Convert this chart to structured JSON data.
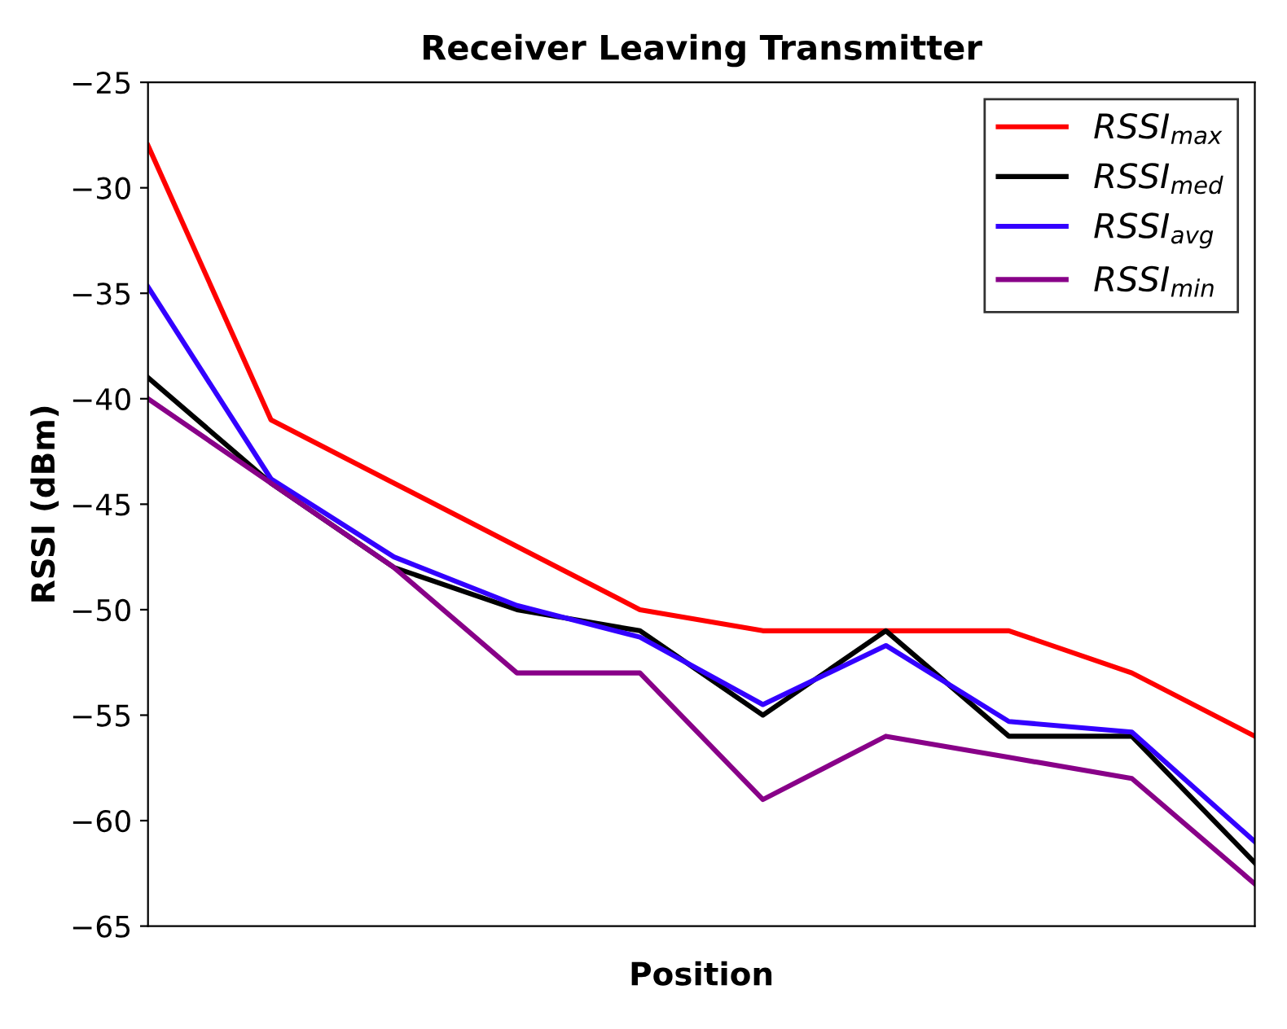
{
  "chart_data": {
    "type": "line",
    "title": "Receiver Leaving Transmitter",
    "xlabel": "Position",
    "ylabel": "RSSI (dBm)",
    "categories": [
      null,
      null,
      null,
      null,
      null,
      null,
      null,
      null,
      null,
      null
    ],
    "series": [
      {
        "name": "RSSI$_{max}$",
        "color": "#ff0000",
        "values": [
          -28,
          -41,
          -44,
          -47,
          -50,
          -51,
          -51,
          -51,
          -53,
          -56
        ]
      },
      {
        "name": "RSSI$_{med}$",
        "color": "#000000",
        "values": [
          -39,
          -44,
          -48,
          -50,
          -51,
          -55,
          -51,
          -56,
          -56,
          -62
        ]
      },
      {
        "name": "RSSI$_{avg}$",
        "color": "#3300ff",
        "values": [
          -34.7,
          -43.8,
          -47.5,
          -49.8,
          -51.3,
          -54.5,
          -51.7,
          -55.3,
          -55.8,
          -61
        ]
      },
      {
        "name": "RSSI$_{min}$",
        "color": "#880088",
        "values": [
          -40,
          -44,
          -48,
          -53,
          -53,
          -59,
          -56,
          -57,
          -58,
          -63
        ]
      }
    ],
    "ylim": [
      -65,
      -25
    ],
    "yticks": [
      -65,
      -60,
      -55,
      -50,
      -45,
      -40,
      -35,
      -30,
      -25
    ],
    "grid": false,
    "legend": "top right",
    "marker": "none",
    "line_style": "solid"
  }
}
